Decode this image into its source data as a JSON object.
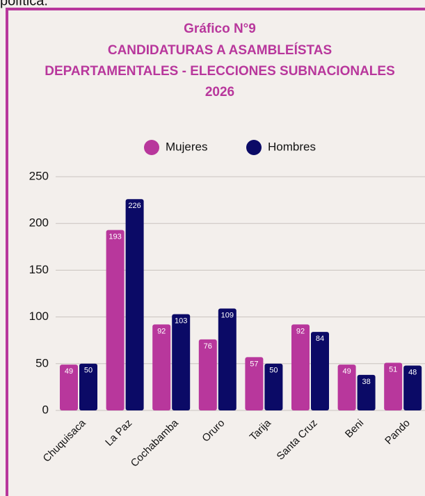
{
  "page_text": "política.",
  "chart_data": {
    "type": "bar",
    "title": [
      "Gráfico N°9",
      "CANDIDATURAS A ASAMBLEÍSTAS",
      "DEPARTAMENTALES - ELECCIONES SUBNACIONALES",
      "2026"
    ],
    "categories": [
      "Chuquisaca",
      "La Paz",
      "Cochabamba",
      "Oruro",
      "Tarija",
      "Santa Cruz",
      "Beni",
      "Pando"
    ],
    "series": [
      {
        "name": "Mujeres",
        "color": "#b8379c",
        "values": [
          49,
          193,
          92,
          76,
          57,
          92,
          49,
          51
        ]
      },
      {
        "name": "Hombres",
        "color": "#0b0a66",
        "values": [
          50,
          226,
          103,
          109,
          50,
          84,
          38,
          48
        ]
      }
    ],
    "ylim": [
      0,
      250
    ],
    "yticks": [
      0,
      50,
      100,
      150,
      200,
      250
    ],
    "grid": true,
    "legend": "top"
  }
}
